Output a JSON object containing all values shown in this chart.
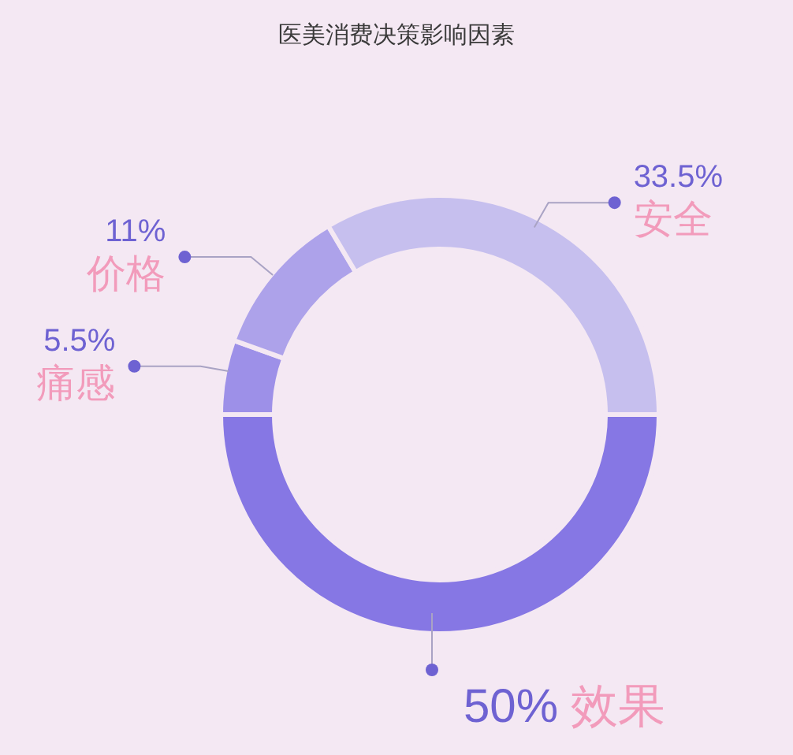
{
  "chart_data": {
    "type": "donut",
    "title": "医美消费决策影响因素",
    "categories": [
      "效果",
      "痛感",
      "价格",
      "安全"
    ],
    "values": [
      50,
      5.5,
      11,
      33.5
    ],
    "colors": [
      "#8677e4",
      "#9d90e8",
      "#ada2ea",
      "#c6bfee"
    ],
    "value_labels": [
      "50%",
      "5.5%",
      "11%",
      "33.5%"
    ]
  }
}
